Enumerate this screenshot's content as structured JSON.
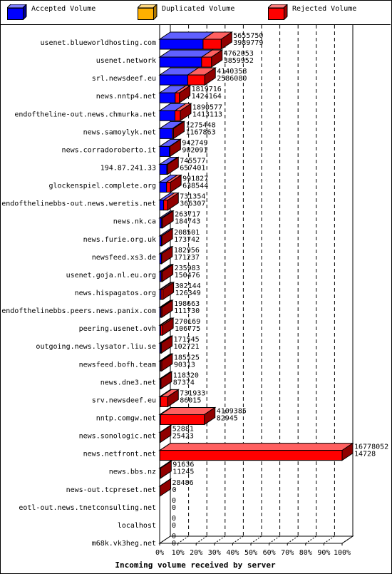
{
  "legend": [
    {
      "label": "Accepted Volume",
      "color": "#0000ff"
    },
    {
      "label": "Duplicated Volume",
      "color": "#ffb000"
    },
    {
      "label": "Rejected Volume",
      "color": "#ff0000"
    }
  ],
  "chart_data": {
    "type": "bar",
    "orientation": "horizontal",
    "stacked": true,
    "xlabel": "Incoming volume received by server",
    "xlim": [
      0,
      100
    ],
    "x_unit": "%",
    "x_ticks": [
      "0%",
      "10%",
      "20%",
      "30%",
      "40%",
      "50%",
      "60%",
      "70%",
      "80%",
      "90%",
      "100%"
    ],
    "grid": true,
    "legend_position": "top",
    "series": [
      {
        "name": "Accepted Volume",
        "color": "#0000ff"
      },
      {
        "name": "Duplicated Volume",
        "color": "#ffb000"
      },
      {
        "name": "Rejected Volume",
        "color": "#ff0000"
      }
    ],
    "rows": [
      {
        "server": "usenet.blueworldhosting.com",
        "total": "5655750",
        "accepted": "3989779",
        "total_pct": 33.7,
        "accepted_pct": 23.8
      },
      {
        "server": "usenet.network",
        "total": "4762053",
        "accepted": "3859952",
        "total_pct": 28.4,
        "accepted_pct": 23.0
      },
      {
        "server": "srl.newsdeef.eu",
        "total": "4140358",
        "accepted": "2586080",
        "total_pct": 24.7,
        "accepted_pct": 15.4
      },
      {
        "server": "news.nntp4.net",
        "total": "1819716",
        "accepted": "1424164",
        "total_pct": 10.8,
        "accepted_pct": 8.5
      },
      {
        "server": "endoftheline-out.news.chmurka.net",
        "total": "1890577",
        "accepted": "1413113",
        "total_pct": 11.3,
        "accepted_pct": 8.4
      },
      {
        "server": "news.samoylyk.net",
        "total": "1275448",
        "accepted": "1167863",
        "total_pct": 7.6,
        "accepted_pct": 7.0
      },
      {
        "server": "news.corradoroberto.it",
        "total": "942749",
        "accepted": "902091",
        "total_pct": 5.6,
        "accepted_pct": 5.4
      },
      {
        "server": "194.87.241.33",
        "total": "745577",
        "accepted": "657401",
        "total_pct": 4.4,
        "accepted_pct": 3.9
      },
      {
        "server": "glockenspiel.complete.org",
        "total": "991827",
        "accepted": "638544",
        "total_pct": 5.9,
        "accepted_pct": 3.8
      },
      {
        "server": "endofthelinebbs-out.news.weretis.net",
        "total": "731354",
        "accepted": "366307",
        "total_pct": 4.4,
        "accepted_pct": 2.2
      },
      {
        "server": "news.nk.ca",
        "total": "263717",
        "accepted": "184743",
        "total_pct": 1.6,
        "accepted_pct": 1.1
      },
      {
        "server": "news.furie.org.uk",
        "total": "208501",
        "accepted": "173742",
        "total_pct": 1.2,
        "accepted_pct": 1.0
      },
      {
        "server": "newsfeed.xs3.de",
        "total": "182956",
        "accepted": "171237",
        "total_pct": 1.1,
        "accepted_pct": 1.0
      },
      {
        "server": "usenet.goja.nl.eu.org",
        "total": "235983",
        "accepted": "150476",
        "total_pct": 1.4,
        "accepted_pct": 0.9
      },
      {
        "server": "news.hispagatos.org",
        "total": "302144",
        "accepted": "126349",
        "total_pct": 1.8,
        "accepted_pct": 0.8
      },
      {
        "server": "endofthelinebbs.peers.news.panix.com",
        "total": "198663",
        "accepted": "111730",
        "total_pct": 1.2,
        "accepted_pct": 0.7
      },
      {
        "server": "peering.usenet.ovh",
        "total": "270169",
        "accepted": "106775",
        "total_pct": 1.6,
        "accepted_pct": 0.6
      },
      {
        "server": "outgoing.news.lysator.liu.se",
        "total": "171545",
        "accepted": "102721",
        "total_pct": 1.0,
        "accepted_pct": 0.6
      },
      {
        "server": "newsfeed.bofh.team",
        "total": "185525",
        "accepted": "90313",
        "total_pct": 1.1,
        "accepted_pct": 0.5
      },
      {
        "server": "news.dne3.net",
        "total": "118320",
        "accepted": "87374",
        "total_pct": 0.7,
        "accepted_pct": 0.5
      },
      {
        "server": "srv.newsdeef.eu",
        "total": "731933",
        "accepted": "86015",
        "total_pct": 4.4,
        "accepted_pct": 0.5
      },
      {
        "server": "nntp.comgw.net",
        "total": "4109385",
        "accepted": "82945",
        "total_pct": 24.5,
        "accepted_pct": 0.5
      },
      {
        "server": "news.sonologic.net",
        "total": "52881",
        "accepted": "25423",
        "total_pct": 0.3,
        "accepted_pct": 0.2
      },
      {
        "server": "news.netfront.net",
        "total": "16778052",
        "accepted": "14728",
        "total_pct": 100,
        "accepted_pct": 0.1
      },
      {
        "server": "news.bbs.nz",
        "total": "91636",
        "accepted": "11245",
        "total_pct": 0.5,
        "accepted_pct": 0.1
      },
      {
        "server": "news-out.tcpreset.net",
        "total": "28486",
        "accepted": "0",
        "total_pct": 0.2,
        "accepted_pct": 0
      },
      {
        "server": "eotl-out.news.tnetconsulting.net",
        "total": "0",
        "accepted": "0",
        "total_pct": 0,
        "accepted_pct": 0
      },
      {
        "server": "localhost",
        "total": "0",
        "accepted": "0",
        "total_pct": 0,
        "accepted_pct": 0
      },
      {
        "server": "m68k.vk3heg.net",
        "total": "0",
        "accepted": "0",
        "total_pct": 0,
        "accepted_pct": 0
      }
    ]
  }
}
